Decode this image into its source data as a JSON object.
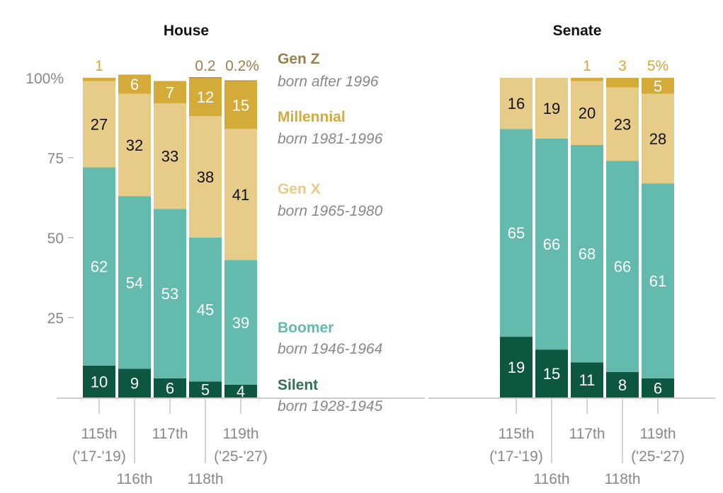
{
  "chart_data": [
    {
      "type": "bar",
      "stacked": true,
      "title": "House",
      "categories": [
        "115th",
        "116th",
        "117th",
        "118th",
        "119th"
      ],
      "category_sublabels": [
        "('17-'19)",
        "",
        "",
        "",
        "('25-'27)"
      ],
      "ylim": [
        0,
        100
      ],
      "yticks": [
        "25",
        "50",
        "75",
        "100%"
      ],
      "series": [
        {
          "name": "Silent",
          "values": [
            10,
            9,
            6,
            5,
            4
          ]
        },
        {
          "name": "Boomer",
          "values": [
            62,
            54,
            53,
            45,
            39
          ]
        },
        {
          "name": "Gen X",
          "values": [
            27,
            32,
            33,
            38,
            41
          ]
        },
        {
          "name": "Millennial",
          "values": [
            1,
            6,
            7,
            12,
            15
          ]
        },
        {
          "name": "Gen Z",
          "values": [
            0,
            0,
            0,
            0.2,
            0.2
          ]
        }
      ],
      "top_labels": [
        "1",
        "",
        "",
        "0.2",
        "0.2%"
      ],
      "top_label_series": [
        "Millennial",
        "",
        "",
        "Gen Z",
        "Gen Z"
      ]
    },
    {
      "type": "bar",
      "stacked": true,
      "title": "Senate",
      "categories": [
        "115th",
        "116th",
        "117th",
        "118th",
        "119th"
      ],
      "category_sublabels": [
        "('17-'19)",
        "",
        "",
        "",
        "('25-'27)"
      ],
      "ylim": [
        0,
        100
      ],
      "series": [
        {
          "name": "Silent",
          "values": [
            19,
            15,
            11,
            8,
            6
          ]
        },
        {
          "name": "Boomer",
          "values": [
            65,
            66,
            68,
            66,
            61
          ]
        },
        {
          "name": "Gen X",
          "values": [
            16,
            19,
            20,
            23,
            28
          ]
        },
        {
          "name": "Millennial",
          "values": [
            0,
            0,
            1,
            3,
            5
          ]
        },
        {
          "name": "Gen Z",
          "values": [
            0,
            0,
            0,
            0,
            0
          ]
        }
      ],
      "top_labels": [
        "",
        "",
        "1",
        "3",
        "5%"
      ],
      "top_label_series": [
        "",
        "",
        "Millennial",
        "Millennial",
        "Millennial"
      ]
    }
  ],
  "legend": [
    {
      "name": "Gen Z",
      "sub": "born after 1996"
    },
    {
      "name": "Millennial",
      "sub": "born 1981-1996"
    },
    {
      "name": "Gen X",
      "sub": "born 1965-1980"
    },
    {
      "name": "Boomer",
      "sub": "born 1946-1964"
    },
    {
      "name": "Silent",
      "sub": "born 1928-1945"
    }
  ],
  "colors": {
    "Silent": "#0d5640",
    "Boomer": "#64bbad",
    "Gen X": "#e6cc88",
    "Millennial": "#d4aa38",
    "Gen Z": "#9c8644",
    "Silent_text": "#2f6f5c",
    "Boomer_text": "#64bbad",
    "Genx_text": "#e6cc88",
    "Millennial_text": "#d4aa38",
    "Genz_text": "#97804a"
  }
}
